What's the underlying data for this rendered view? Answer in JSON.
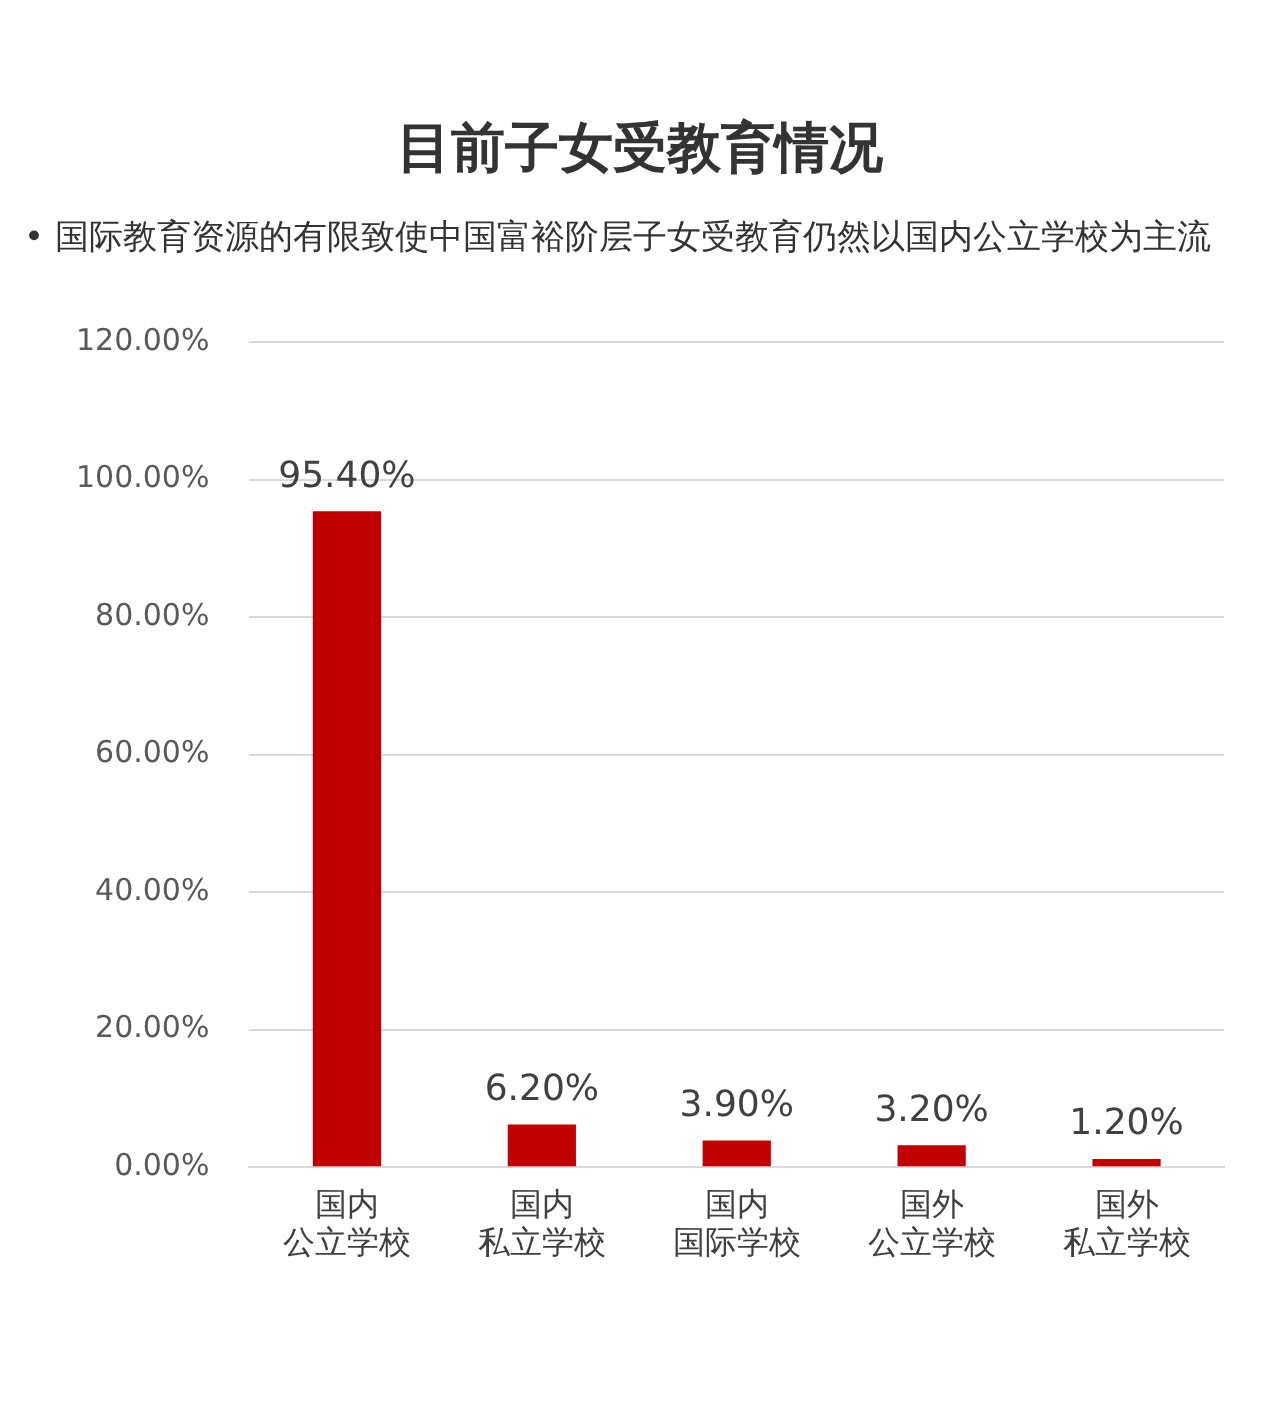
{
  "chart_data": {
    "type": "bar",
    "title": "目前子女受教育情况",
    "subtitle": "• 国际教育资源的有限致使中国富裕阶层子女受教育仍然以国内公立学校为主流",
    "categories": [
      "国内公立学校",
      "国内私立学校",
      "国内国际学校",
      "国外公立学校",
      "国外私立学校"
    ],
    "values": [
      95.4,
      6.2,
      3.9,
      3.2,
      1.2
    ],
    "value_labels": [
      "95.40%",
      "6.20%",
      "3.90%",
      "3.20%",
      "1.20%"
    ],
    "color": "#c00000",
    "ylim": [
      0,
      120
    ],
    "yticks": [
      {
        "value": 0,
        "label": "0.00%"
      },
      {
        "value": 20,
        "label": "20.00%"
      },
      {
        "value": 40,
        "label": "40.00%"
      },
      {
        "value": 60,
        "label": "60.00%"
      },
      {
        "value": 80,
        "label": "80.00%"
      },
      {
        "value": 100,
        "label": "100.00%"
      },
      {
        "value": 120,
        "label": "120.00%"
      }
    ],
    "grid": "y"
  }
}
